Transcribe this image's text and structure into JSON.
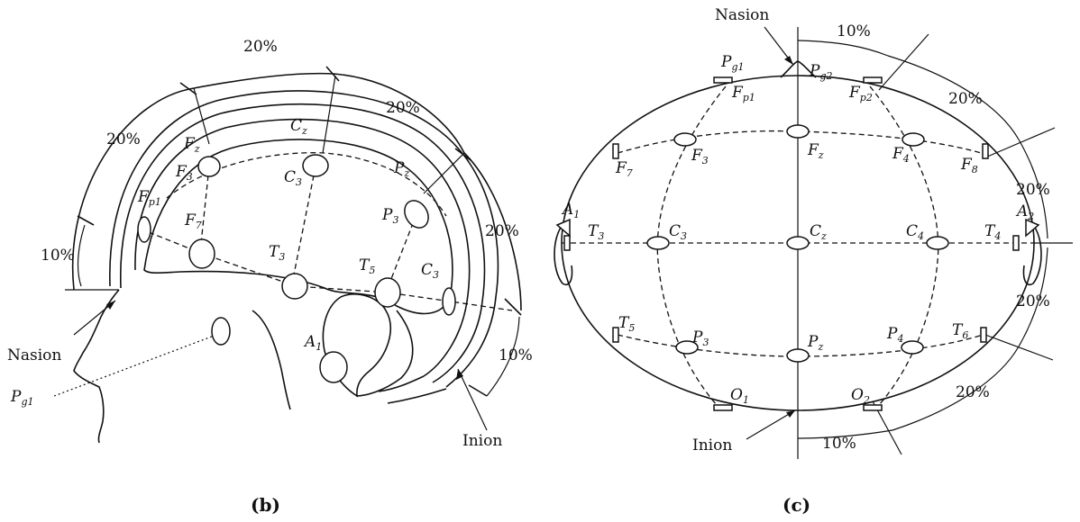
{
  "panel_b": {
    "caption": "(b)",
    "percentages": [
      "20%",
      "20%",
      "20%",
      "20%",
      "10%",
      "10%"
    ],
    "landmarks": {
      "nasion": "Nasion",
      "inion": "Inion"
    },
    "electrodes": {
      "fz": {
        "main": "F",
        "sub": "z"
      },
      "f3": {
        "main": "F",
        "sub": "3"
      },
      "fp1": {
        "main": "F",
        "sub": "p1"
      },
      "f7": {
        "main": "F",
        "sub": "7"
      },
      "cz": {
        "main": "C",
        "sub": "z"
      },
      "c3": {
        "main": "C",
        "sub": "3"
      },
      "c3b": {
        "main": "C",
        "sub": "3"
      },
      "pz": {
        "main": "P",
        "sub": "z"
      },
      "p3": {
        "main": "P",
        "sub": "3"
      },
      "t3": {
        "main": "T",
        "sub": "3"
      },
      "t5": {
        "main": "T",
        "sub": "5"
      },
      "a1": {
        "main": "A",
        "sub": "1"
      },
      "pg1": {
        "main": "P",
        "sub": "g1"
      }
    }
  },
  "panel_c": {
    "caption": "(c)",
    "percentages": [
      "10%",
      "20%",
      "20%",
      "20%",
      "20%",
      "10%"
    ],
    "landmarks": {
      "nasion": "Nasion",
      "inion": "Inion"
    },
    "electrodes": {
      "pg1": {
        "main": "P",
        "sub": "g1"
      },
      "pg2": {
        "main": "P",
        "sub": "g2"
      },
      "fp1": {
        "main": "F",
        "sub": "p1"
      },
      "fp2": {
        "main": "F",
        "sub": "p2"
      },
      "f7": {
        "main": "F",
        "sub": "7"
      },
      "f3": {
        "main": "F",
        "sub": "3"
      },
      "fz": {
        "main": "F",
        "sub": "z"
      },
      "f4": {
        "main": "F",
        "sub": "4"
      },
      "f8": {
        "main": "F",
        "sub": "8"
      },
      "a1": {
        "main": "A",
        "sub": "1"
      },
      "a2": {
        "main": "A",
        "sub": "2"
      },
      "t3": {
        "main": "T",
        "sub": "3"
      },
      "c3": {
        "main": "C",
        "sub": "3"
      },
      "cz": {
        "main": "C",
        "sub": "z"
      },
      "c4": {
        "main": "C",
        "sub": "4"
      },
      "t4": {
        "main": "T",
        "sub": "4"
      },
      "t5": {
        "main": "T",
        "sub": "5"
      },
      "p3": {
        "main": "P",
        "sub": "3"
      },
      "pz": {
        "main": "P",
        "sub": "z"
      },
      "p4": {
        "main": "P",
        "sub": "4"
      },
      "t6": {
        "main": "T",
        "sub": "6"
      },
      "o1": {
        "main": "O",
        "sub": "1"
      },
      "o2": {
        "main": "O",
        "sub": "2"
      }
    }
  }
}
